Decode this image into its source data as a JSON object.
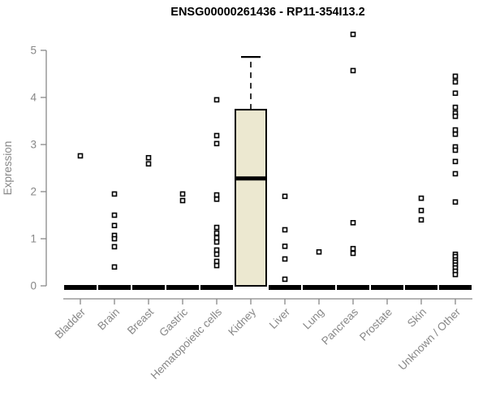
{
  "chart_data": {
    "type": "boxplot",
    "title": "ENSG00000261436 - RP11-354I13.2",
    "ylabel": "Expression",
    "xlabel": "",
    "ylim": [
      0,
      5
    ],
    "yticks": [
      0,
      1,
      2,
      3,
      4,
      5
    ],
    "grid": false,
    "legend": null,
    "categories": [
      "Bladder",
      "Brain",
      "Breast",
      "Gastric",
      "Hematopoietic cells",
      "Kidney",
      "Liver",
      "Lung",
      "Pancreas",
      "Prostate",
      "Skin",
      "Unknown / Other"
    ],
    "boxes": [
      {
        "category": "Bladder",
        "median": 0,
        "q1": 0,
        "q3": 0,
        "whisker_low": 0,
        "whisker_high": 0,
        "outliers": [
          2.76
        ]
      },
      {
        "category": "Brain",
        "median": 0,
        "q1": 0,
        "q3": 0,
        "whisker_low": 0,
        "whisker_high": 0,
        "outliers": [
          1.95,
          1.5,
          1.28,
          1.07,
          1.0,
          0.83,
          0.4
        ]
      },
      {
        "category": "Breast",
        "median": 0,
        "q1": 0,
        "q3": 0,
        "whisker_low": 0,
        "whisker_high": 0,
        "outliers": [
          2.72,
          2.59
        ]
      },
      {
        "category": "Gastric",
        "median": 0,
        "q1": 0,
        "q3": 0,
        "whisker_low": 0,
        "whisker_high": 0,
        "outliers": [
          1.95,
          1.81
        ]
      },
      {
        "category": "Hematopoietic cells",
        "median": 0,
        "q1": 0,
        "q3": 0,
        "whisker_low": 0,
        "whisker_high": 0,
        "outliers": [
          3.95,
          3.19,
          3.02,
          1.93,
          1.84,
          1.24,
          1.12,
          1.02,
          0.93,
          0.76,
          0.67,
          0.52,
          0.43
        ]
      },
      {
        "category": "Kidney",
        "median": 2.28,
        "q1": 0,
        "q3": 3.74,
        "whisker_low": 0,
        "whisker_high": 4.86,
        "outliers": []
      },
      {
        "category": "Liver",
        "median": 0,
        "q1": 0,
        "q3": 0,
        "whisker_low": 0,
        "whisker_high": 0,
        "outliers": [
          1.9,
          1.19,
          0.84,
          0.57,
          0.14
        ]
      },
      {
        "category": "Lung",
        "median": 0,
        "q1": 0,
        "q3": 0,
        "whisker_low": 0,
        "whisker_high": 0,
        "outliers": [
          0.72
        ]
      },
      {
        "category": "Pancreas",
        "median": 0,
        "q1": 0,
        "q3": 0,
        "whisker_low": 0,
        "whisker_high": 0,
        "outliers": [
          5.34,
          4.57,
          1.34,
          0.79,
          0.69
        ]
      },
      {
        "category": "Prostate",
        "median": 0,
        "q1": 0,
        "q3": 0,
        "whisker_low": 0,
        "whisker_high": 0,
        "outliers": []
      },
      {
        "category": "Skin",
        "median": 0,
        "q1": 0,
        "q3": 0,
        "whisker_low": 0,
        "whisker_high": 0,
        "outliers": [
          1.86,
          1.6,
          1.4
        ]
      },
      {
        "category": "Unknown / Other",
        "median": 0,
        "q1": 0,
        "q3": 0,
        "whisker_low": 0,
        "whisker_high": 0,
        "outliers": [
          4.45,
          4.33,
          4.09,
          3.79,
          3.67,
          3.6,
          3.31,
          3.22,
          2.95,
          2.88,
          2.64,
          2.38,
          1.78,
          0.67,
          0.62,
          0.55,
          0.5,
          0.44,
          0.38,
          0.31,
          0.24
        ]
      }
    ],
    "colors": {
      "box_fill": "#ece8d0",
      "box_stroke": "#000000",
      "outlier_stroke": "#000000",
      "axis": "#888888",
      "tick_label": "#878787",
      "title": "#000000",
      "background": "#ffffff"
    }
  }
}
